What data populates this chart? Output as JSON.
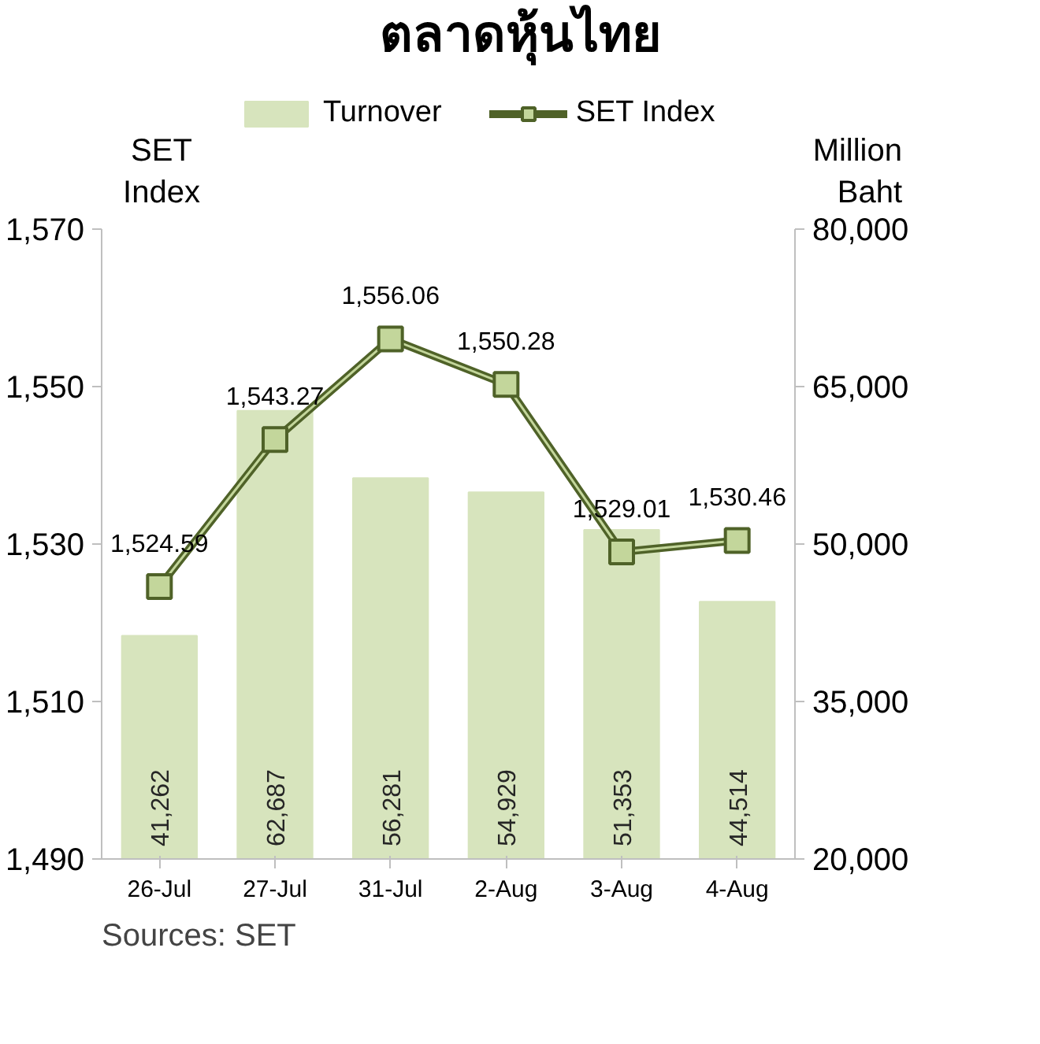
{
  "chart_data": {
    "type": "bar",
    "title": "ตลาดหุ้นไทย",
    "ylabel": "SET Index",
    "y2label": "Million Baht",
    "categories": [
      "26-Jul",
      "27-Jul",
      "31-Jul",
      "2-Aug",
      "3-Aug",
      "4-Aug"
    ],
    "series": [
      {
        "name": "Turnover",
        "type": "bar",
        "axis": "y2",
        "color": "#d7e4bd",
        "values": [
          41262,
          62687,
          56281,
          54929,
          51353,
          44514
        ],
        "value_labels": [
          "41,262",
          "62,687",
          "56,281",
          "54,929",
          "51,353",
          "44,514"
        ]
      },
      {
        "name": "SET Index",
        "type": "line",
        "axis": "y",
        "color": "#4f6228",
        "marker": "square",
        "values": [
          1524.59,
          1543.27,
          1556.06,
          1550.28,
          1529.01,
          1530.46
        ],
        "value_labels": [
          "1,524.59",
          "1,543.27",
          "1,556.06",
          "1,550.28",
          "1,529.01",
          "1,530.46"
        ]
      }
    ],
    "ylim": [
      1490,
      1570
    ],
    "yticks": [
      {
        "value": 1490,
        "label": "1,490"
      },
      {
        "value": 1510,
        "label": "1,510"
      },
      {
        "value": 1530,
        "label": "1,530"
      },
      {
        "value": 1550,
        "label": "1,550"
      },
      {
        "value": 1570,
        "label": "1,570"
      }
    ],
    "y2lim": [
      20000,
      80000
    ],
    "y2ticks": [
      {
        "value": 20000,
        "label": "20,000"
      },
      {
        "value": 35000,
        "label": "35,000"
      },
      {
        "value": 50000,
        "label": "50,000"
      },
      {
        "value": 65000,
        "label": "65,000"
      },
      {
        "value": 80000,
        "label": "80,000"
      }
    ],
    "legend": "top",
    "grid": false,
    "annotations": [
      "Sources: SET"
    ]
  }
}
